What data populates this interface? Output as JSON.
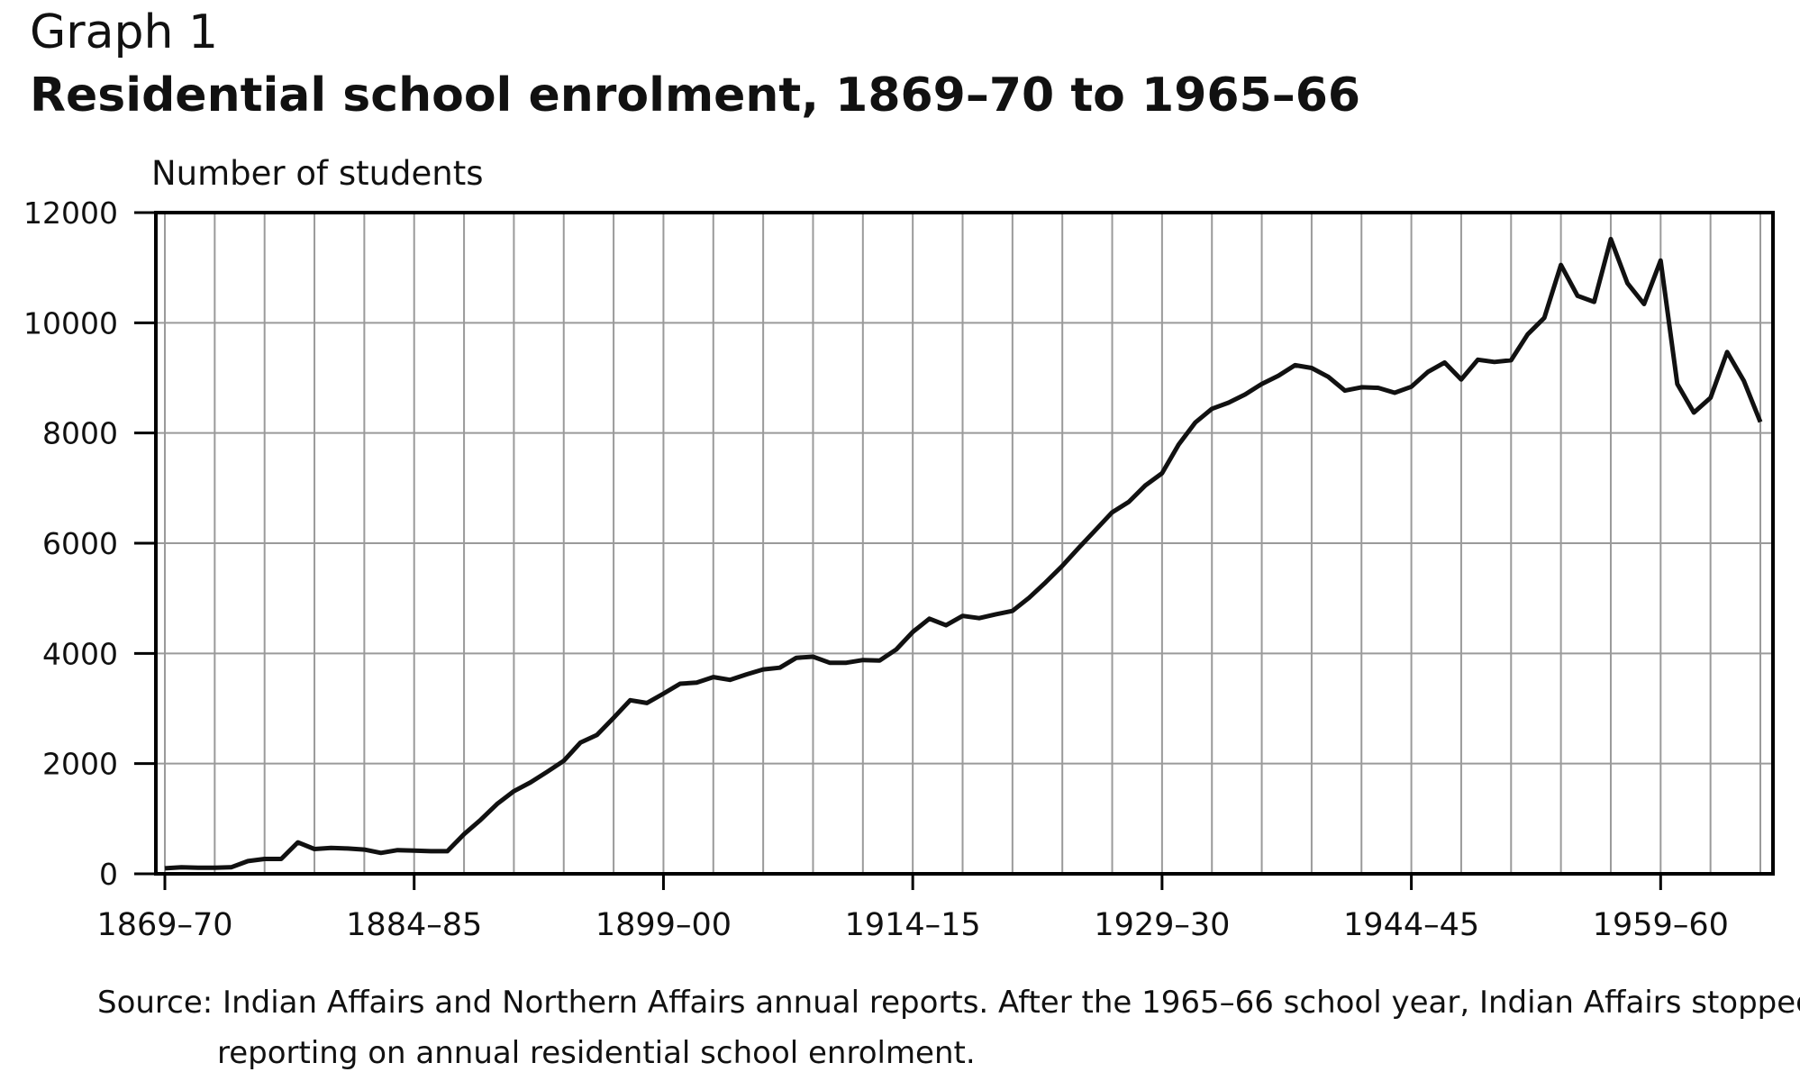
{
  "header": {
    "graph_label": "Graph 1",
    "title": "Residential school enrolment, 1869–70 to 1965–66"
  },
  "chart_data": {
    "type": "line",
    "title": "Residential school enrolment, 1869–70 to 1965–66",
    "ylabel": "Number of students",
    "xlabel": "",
    "ylim": [
      0,
      12000
    ],
    "yticks": [
      0,
      2000,
      4000,
      6000,
      8000,
      10000,
      12000
    ],
    "xlim": [
      1869,
      1965
    ],
    "x_tick_labels": [
      {
        "year": 1869,
        "label": "1869–70"
      },
      {
        "year": 1884,
        "label": "1884–85"
      },
      {
        "year": 1899,
        "label": "1899–00"
      },
      {
        "year": 1914,
        "label": "1914–15"
      },
      {
        "year": 1929,
        "label": "1929–30"
      },
      {
        "year": 1944,
        "label": "1944–45"
      },
      {
        "year": 1959,
        "label": "1959–60"
      }
    ],
    "grid_start_year": 1869,
    "grid_step_years": 3,
    "grid": true,
    "line_color": "#111111",
    "series": [
      {
        "x": [
          1869,
          1870,
          1871,
          1872,
          1873,
          1874,
          1875,
          1876,
          1877,
          1878,
          1879,
          1880,
          1881,
          1882,
          1883,
          1884,
          1885,
          1886,
          1887,
          1888,
          1889,
          1890,
          1891,
          1892,
          1893,
          1894,
          1895,
          1896,
          1897,
          1898,
          1899,
          1900,
          1901,
          1902,
          1903,
          1904,
          1905,
          1906,
          1907,
          1908,
          1909,
          1910,
          1911,
          1912,
          1913,
          1914,
          1915,
          1916,
          1917,
          1918,
          1919,
          1920,
          1921,
          1922,
          1923,
          1924,
          1925,
          1926,
          1927,
          1928,
          1929,
          1930,
          1931,
          1932,
          1933,
          1934,
          1935,
          1936,
          1937,
          1938,
          1939,
          1940,
          1941,
          1942,
          1943,
          1944,
          1945,
          1946,
          1947,
          1948,
          1949,
          1950,
          1951,
          1952,
          1953,
          1954,
          1955,
          1956,
          1957,
          1958,
          1959,
          1960,
          1961,
          1962,
          1963,
          1964,
          1965
        ],
        "values": [
          100,
          120,
          110,
          110,
          120,
          230,
          270,
          270,
          570,
          450,
          470,
          460,
          440,
          380,
          430,
          420,
          410,
          410,
          720,
          980,
          1270,
          1500,
          1660,
          1850,
          2050,
          2380,
          2520,
          2830,
          3150,
          3100,
          3270,
          3450,
          3470,
          3570,
          3520,
          3620,
          3710,
          3740,
          3920,
          3940,
          3830,
          3830,
          3880,
          3870,
          4070,
          4390,
          4630,
          4510,
          4680,
          4640,
          4710,
          4770,
          5010,
          5290,
          5590,
          5920,
          6240,
          6560,
          6750,
          7050,
          7270,
          7790,
          8190,
          8440,
          8550,
          8700,
          8890,
          9040,
          9230,
          9180,
          9020,
          8770,
          8830,
          8820,
          8730,
          8840,
          9110,
          9280,
          8970,
          9330,
          9290,
          9320,
          9790,
          10090,
          11050,
          10490,
          10380,
          11520,
          10720,
          10340,
          11130,
          8890,
          8370,
          8640,
          9470,
          8950,
          8200
        ]
      }
    ]
  },
  "source": {
    "text": "Source: Indian Affairs and Northern Affairs annual reports. After the 1965–66 school year, Indian Affairs stopped reporting on annual residential school enrolment."
  }
}
